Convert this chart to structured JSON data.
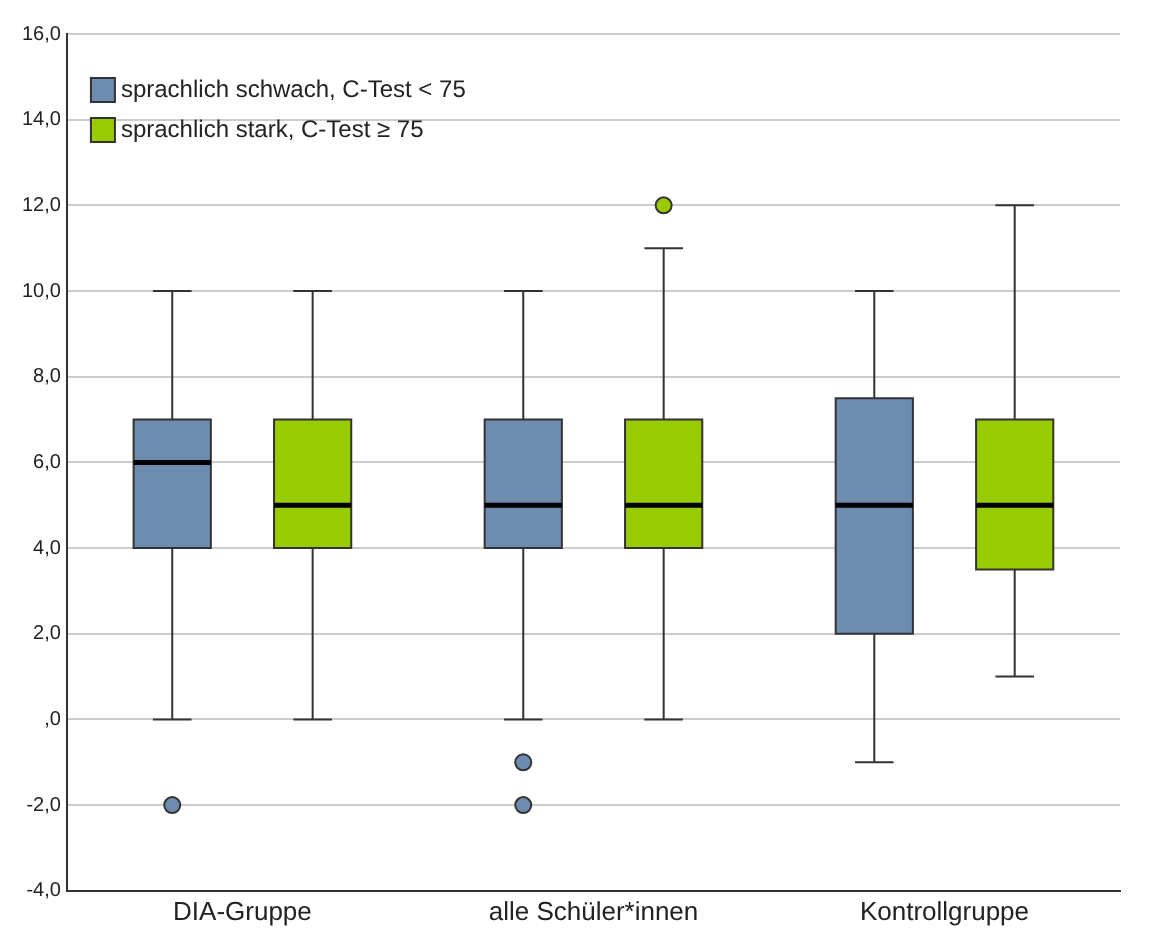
{
  "chart_data": {
    "type": "box",
    "categories": [
      "DIA-Gruppe",
      "alle Schüler*innen",
      "Kontrollgruppe"
    ],
    "series": [
      {
        "name": "sprachlich schwach, C-Test < 75",
        "color": "#6d8cb0",
        "boxes": [
          {
            "low": 0,
            "q1": 4,
            "median": 6,
            "q3": 7,
            "high": 10,
            "outliers": [
              -2
            ]
          },
          {
            "low": 0,
            "q1": 4,
            "median": 5,
            "q3": 7,
            "high": 10,
            "outliers": [
              -1,
              -2
            ]
          },
          {
            "low": -1,
            "q1": 2,
            "median": 5,
            "q3": 7.5,
            "high": 10
          }
        ]
      },
      {
        "name": "sprachlich stark, C-Test ≥ 75",
        "color": "#99cc00",
        "boxes": [
          {
            "low": 0,
            "q1": 4,
            "median": 5,
            "q3": 7,
            "high": 10
          },
          {
            "low": 0,
            "q1": 4,
            "median": 5,
            "q3": 7,
            "high": 11,
            "outliers": [
              12
            ]
          },
          {
            "low": 1,
            "q1": 3.5,
            "median": 5,
            "q3": 7,
            "high": 12
          }
        ]
      }
    ],
    "ylim": [
      -4,
      16
    ],
    "yticks": [
      {
        "value": -4,
        "label": "-4,0"
      },
      {
        "value": -2,
        "label": "-2,0"
      },
      {
        "value": 0,
        "label": ",0"
      },
      {
        "value": 2,
        "label": "2,0"
      },
      {
        "value": 4,
        "label": "4,0"
      },
      {
        "value": 6,
        "label": "6,0"
      },
      {
        "value": 8,
        "label": "8,0"
      },
      {
        "value": 10,
        "label": "10,0"
      },
      {
        "value": 12,
        "label": "12,0"
      },
      {
        "value": 14,
        "label": "14,0"
      },
      {
        "value": 16,
        "label": "16,0"
      }
    ],
    "grid": "y",
    "legend": "top left"
  }
}
